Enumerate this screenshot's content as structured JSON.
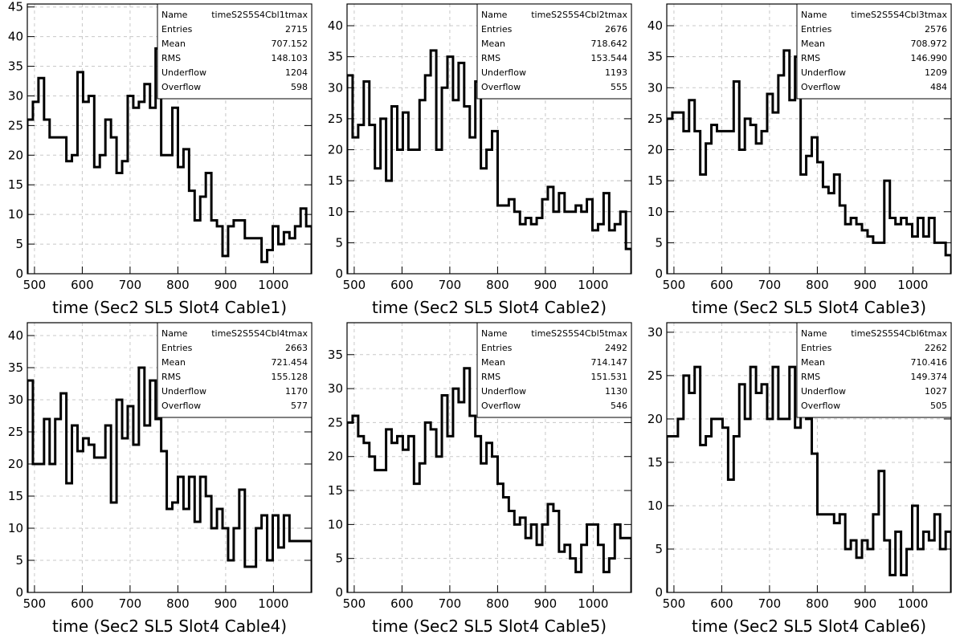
{
  "chart_data": [
    {
      "type": "histogram",
      "xlabel": "time (Sec2 SL5 Slot4 Cable1)",
      "ylabel": "",
      "xlim": [
        485,
        1080
      ],
      "ylim": [
        0,
        45.5
      ],
      "yticks": [
        0,
        5,
        10,
        15,
        20,
        25,
        30,
        35,
        40,
        45
      ],
      "xticks": [
        500,
        600,
        700,
        800,
        900,
        1000
      ],
      "grid": true,
      "stats": {
        "name": "timeS2S5S4Cbl1tmax",
        "entries": "2715",
        "mean": "707.152",
        "rms": "148.103",
        "underflow": "1204",
        "overflow": "598"
      },
      "bin_edges_start": 485,
      "bin_width": 11.67,
      "values": [
        26,
        29,
        33,
        26,
        23,
        23,
        23,
        19,
        20,
        34,
        29,
        30,
        18,
        20,
        26,
        23,
        17,
        19,
        30,
        28,
        29,
        32,
        28,
        38,
        20,
        20,
        28,
        18,
        21,
        14,
        9,
        13,
        17,
        9,
        8,
        3,
        8,
        9,
        9,
        6,
        6,
        6,
        2,
        4,
        8,
        5,
        7,
        6,
        8,
        11,
        8
      ]
    },
    {
      "type": "histogram",
      "xlabel": "time (Sec2 SL5 Slot4 Cable2)",
      "ylabel": "",
      "xlim": [
        485,
        1080
      ],
      "ylim": [
        0,
        43.5
      ],
      "yticks": [
        0,
        5,
        10,
        15,
        20,
        25,
        30,
        35,
        40
      ],
      "xticks": [
        500,
        600,
        700,
        800,
        900,
        1000
      ],
      "grid": true,
      "stats": {
        "name": "timeS2S5S4Cbl2tmax",
        "entries": "2676",
        "mean": "718.642",
        "rms": "153.544",
        "underflow": "1193",
        "overflow": "555"
      },
      "bin_edges_start": 485,
      "bin_width": 11.67,
      "values": [
        32,
        22,
        24,
        31,
        24,
        17,
        25,
        15,
        27,
        20,
        26,
        20,
        20,
        28,
        32,
        36,
        20,
        30,
        35,
        28,
        34,
        27,
        22,
        31,
        17,
        20,
        23,
        11,
        11,
        12,
        10,
        8,
        9,
        8,
        9,
        12,
        14,
        10,
        13,
        10,
        10,
        11,
        10,
        12,
        7,
        8,
        13,
        7,
        8,
        10,
        4
      ]
    },
    {
      "type": "histogram",
      "xlabel": "time (Sec2 SL5 Slot4 Cable3)",
      "ylabel": "",
      "xlim": [
        485,
        1080
      ],
      "ylim": [
        0,
        43.5
      ],
      "yticks": [
        0,
        5,
        10,
        15,
        20,
        25,
        30,
        35,
        40
      ],
      "xticks": [
        500,
        600,
        700,
        800,
        900,
        1000
      ],
      "grid": true,
      "stats": {
        "name": "timeS2S5S4Cbl3tmax",
        "entries": "2576",
        "mean": "708.972",
        "rms": "146.990",
        "underflow": "1209",
        "overflow": "484"
      },
      "bin_edges_start": 485,
      "bin_width": 11.67,
      "values": [
        25,
        26,
        26,
        23,
        28,
        23,
        16,
        21,
        24,
        23,
        23,
        23,
        31,
        20,
        25,
        24,
        21,
        23,
        29,
        26,
        32,
        36,
        28,
        35,
        16,
        19,
        22,
        18,
        14,
        13,
        16,
        11,
        8,
        9,
        8,
        7,
        6,
        5,
        5,
        15,
        9,
        8,
        9,
        8,
        6,
        9,
        6,
        9,
        5,
        5,
        3
      ]
    },
    {
      "type": "histogram",
      "xlabel": "time (Sec2 SL5 Slot4 Cable4)",
      "ylabel": "",
      "xlim": [
        485,
        1080
      ],
      "ylim": [
        0,
        42
      ],
      "yticks": [
        0,
        5,
        10,
        15,
        20,
        25,
        30,
        35,
        40
      ],
      "xticks": [
        500,
        600,
        700,
        800,
        900,
        1000
      ],
      "grid": true,
      "stats": {
        "name": "timeS2S5S4Cbl4tmax",
        "entries": "2663",
        "mean": "721.454",
        "rms": "155.128",
        "underflow": "1170",
        "overflow": "577"
      },
      "bin_edges_start": 485,
      "bin_width": 11.67,
      "values": [
        33,
        20,
        20,
        27,
        20,
        27,
        31,
        17,
        26,
        22,
        24,
        23,
        21,
        21,
        26,
        14,
        30,
        24,
        29,
        23,
        35,
        26,
        33,
        27,
        22,
        13,
        14,
        18,
        13,
        18,
        11,
        18,
        15,
        10,
        13,
        10,
        5,
        10,
        16,
        4,
        4,
        10,
        12,
        5,
        12,
        7,
        12,
        8,
        8,
        8,
        8
      ]
    },
    {
      "type": "histogram",
      "xlabel": "time (Sec2 SL5 Slot4 Cable5)",
      "ylabel": "",
      "xlim": [
        485,
        1080
      ],
      "ylim": [
        0,
        39.7
      ],
      "yticks": [
        0,
        5,
        10,
        15,
        20,
        25,
        30,
        35
      ],
      "xticks": [
        500,
        600,
        700,
        800,
        900,
        1000
      ],
      "grid": true,
      "stats": {
        "name": "timeS2S5S4Cbl5tmax",
        "entries": "2492",
        "mean": "714.147",
        "rms": "151.531",
        "underflow": "1130",
        "overflow": "546"
      },
      "bin_edges_start": 485,
      "bin_width": 11.67,
      "values": [
        25,
        26,
        23,
        22,
        20,
        18,
        18,
        24,
        22,
        23,
        21,
        23,
        16,
        19,
        25,
        24,
        20,
        29,
        23,
        30,
        28,
        33,
        26,
        23,
        19,
        22,
        20,
        16,
        14,
        12,
        10,
        11,
        8,
        10,
        7,
        10,
        13,
        12,
        6,
        7,
        5,
        3,
        7,
        10,
        10,
        7,
        3,
        5,
        10,
        8,
        8
      ]
    },
    {
      "type": "histogram",
      "xlabel": "time (Sec2 SL5 Slot4 Cable6)",
      "ylabel": "",
      "xlim": [
        485,
        1080
      ],
      "ylim": [
        0,
        31.1
      ],
      "yticks": [
        0,
        5,
        10,
        15,
        20,
        25,
        30
      ],
      "xticks": [
        500,
        600,
        700,
        800,
        900,
        1000
      ],
      "grid": true,
      "stats": {
        "name": "timeS2S5S4Cbl6tmax",
        "entries": "2262",
        "mean": "710.416",
        "rms": "149.374",
        "underflow": "1027",
        "overflow": "505"
      },
      "bin_edges_start": 485,
      "bin_width": 11.67,
      "values": [
        18,
        18,
        20,
        25,
        23,
        26,
        17,
        18,
        20,
        20,
        19,
        13,
        18,
        24,
        20,
        26,
        23,
        24,
        20,
        26,
        20,
        20,
        26,
        19,
        21,
        20,
        16,
        9,
        9,
        9,
        8,
        9,
        5,
        6,
        4,
        6,
        5,
        9,
        14,
        6,
        2,
        7,
        2,
        5,
        10,
        5,
        7,
        6,
        9,
        5,
        7
      ]
    }
  ],
  "stats_labels": {
    "name": "Name",
    "entries": "Entries",
    "mean": "Mean",
    "rms": "RMS",
    "underflow": "Underflow",
    "overflow": "Overflow"
  }
}
